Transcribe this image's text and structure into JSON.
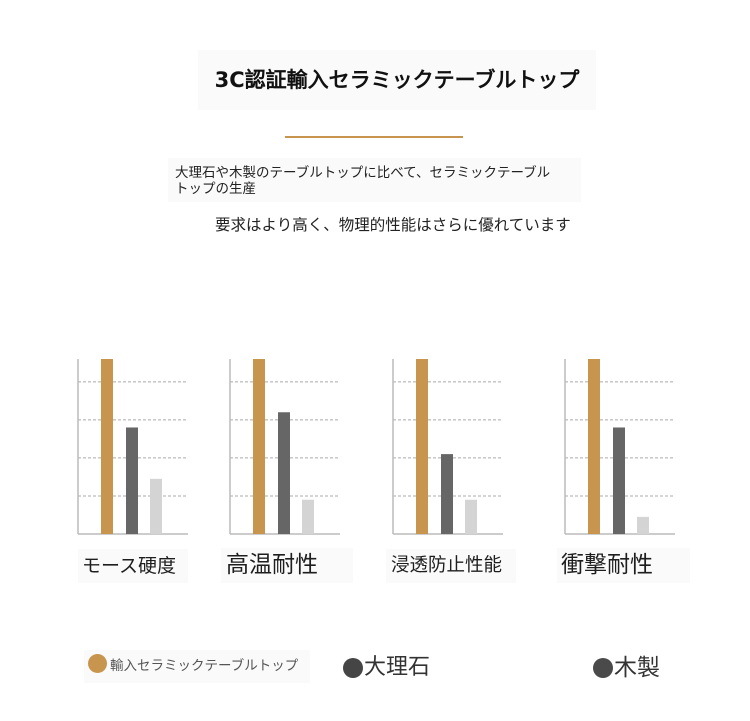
{
  "header": {
    "title": "3C認証輸入セラミックテーブルトップ",
    "accent_color": "#c8954f"
  },
  "description": {
    "line1": "大理石や木製のテーブルトップに比べて、セラミックテーブル",
    "line2": "トップの生産",
    "line3": "要求はより高く、物理的性能はさらに優れています"
  },
  "chart_data": {
    "type": "bar",
    "categories": [
      "モース硬度",
      "高温耐性",
      "浸透防止性能",
      "衝撃耐性"
    ],
    "series": [
      {
        "name": "輸入セラミックテーブルトップ",
        "color": "#c8954f",
        "legend_color": "#c8954f",
        "values": [
          4.6,
          4.6,
          4.6,
          4.6
        ]
      },
      {
        "name": "大理石",
        "color": "#666666",
        "legend_color": "#454545",
        "values": [
          2.8,
          3.2,
          2.1,
          2.8
        ]
      },
      {
        "name": "木製",
        "color": "#d4d4d4",
        "legend_color": "#4a4a4a",
        "values": [
          1.45,
          0.9,
          0.9,
          0.45
        ]
      }
    ],
    "ylim": [
      0,
      4.6
    ],
    "grid": true,
    "grid_style": "dashed",
    "legend": "bottom"
  }
}
